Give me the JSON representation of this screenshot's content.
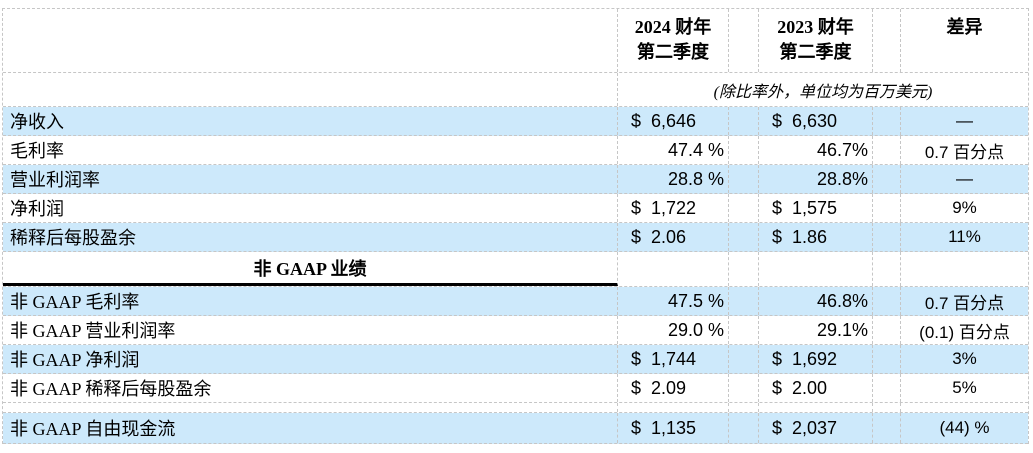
{
  "header": {
    "col_2024": {
      "line1": "2024 财年",
      "line2": "第二季度"
    },
    "col_2023": {
      "line1": "2023 财年",
      "line2": "第二季度"
    },
    "diff": "差异"
  },
  "note": "(除比率外，单位均为百万美元)",
  "section_header": "非 GAAP 业绩",
  "rows": [
    {
      "label": "净收入",
      "v2024": "$ 6,646",
      "v2023": "$ 6,630",
      "diff": "—"
    },
    {
      "label": "毛利率",
      "v2024": "47.4 %",
      "v2023": "46.7%",
      "diff": "0.7 百分点"
    },
    {
      "label": "营业利润率",
      "v2024": "28.8 %",
      "v2023": "28.8%",
      "diff": "—"
    },
    {
      "label": "净利润",
      "v2024": "$ 1,722",
      "v2023": "$ 1,575",
      "diff": "9%"
    },
    {
      "label": "稀释后每股盈余",
      "v2024": "$ 2.06",
      "v2023": "$ 1.86",
      "diff": "11%"
    },
    {
      "label": "非 GAAP 毛利率",
      "v2024": "47.5 %",
      "v2023": "46.8%",
      "diff": "0.7 百分点"
    },
    {
      "label": "非 GAAP 营业利润率",
      "v2024": "29.0 %",
      "v2023": "29.1%",
      "diff": "(0.1) 百分点"
    },
    {
      "label": "非 GAAP 净利润",
      "v2024": "$ 1,744",
      "v2023": "$ 1,692",
      "diff": "3%"
    },
    {
      "label": "非 GAAP 稀释后每股盈余",
      "v2024": "$ 2.09",
      "v2023": "$ 2.00",
      "diff": "5%"
    },
    {
      "label": "非 GAAP 自由现金流",
      "v2024": "$ 1,135",
      "v2023": "$ 2,037",
      "diff": "(44) %"
    }
  ],
  "colors": {
    "row_highlight": "#cde9fb",
    "gridline": "#c6c6c6",
    "section_rule": "#000000",
    "text": "#000000"
  }
}
